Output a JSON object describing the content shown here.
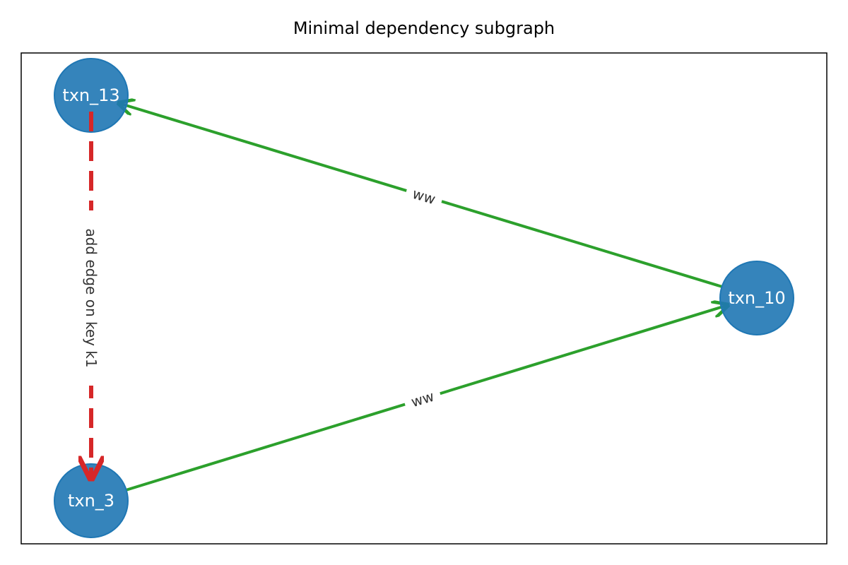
{
  "title": "Minimal dependency subgraph",
  "colors": {
    "node_fill": "#1f77b4",
    "ww_edge": "#2ca02c",
    "added_edge": "#d62728",
    "label_text": "#333333"
  },
  "nodes": [
    {
      "id": "txn_13",
      "label": "txn_13"
    },
    {
      "id": "txn_10",
      "label": "txn_10"
    },
    {
      "id": "txn_3",
      "label": "txn_3"
    }
  ],
  "edges": [
    {
      "from": "txn_10",
      "to": "txn_13",
      "label": "ww",
      "style": "solid"
    },
    {
      "from": "txn_3",
      "to": "txn_10",
      "label": "ww",
      "style": "solid"
    },
    {
      "from": "txn_13",
      "to": "txn_3",
      "label": "add edge on key k1",
      "style": "dashed"
    }
  ]
}
